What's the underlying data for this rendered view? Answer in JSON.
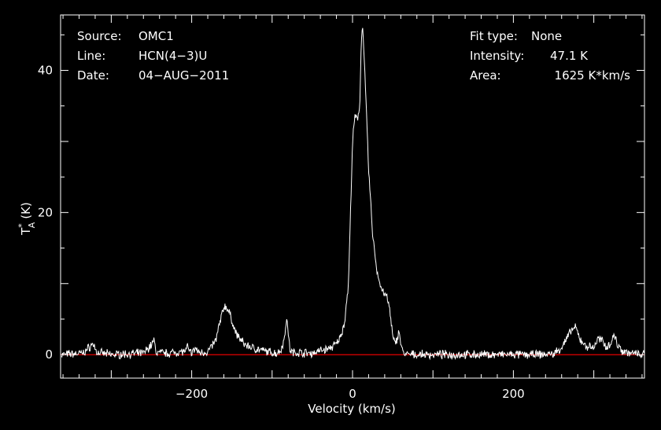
{
  "header_left": {
    "source_label": "Source:",
    "source_value": "OMC1",
    "line_label": "Line:",
    "line_value": "HCN(4−3)U",
    "date_label": "Date:",
    "date_value": "04−AUG−2011"
  },
  "header_right": {
    "fit_label": "Fit type:",
    "fit_value": "None",
    "intensity_label": "Intensity:",
    "intensity_value": "47.1 K",
    "area_label": "Area:",
    "area_value": "1625 K*km/s"
  },
  "colors": {
    "background": "#000000",
    "spectrum": "#ffffff",
    "baseline": "#ff0000"
  },
  "chart_data": {
    "type": "line",
    "xlabel": "Velocity (km/s)",
    "ylabel_main": "T",
    "ylabel_sup": "*",
    "ylabel_sub": "A",
    "ylabel_unit": "(K)",
    "xlim": [
      -363,
      363
    ],
    "ylim": [
      -3.3,
      47.8
    ],
    "xticks": [
      -200,
      0,
      200
    ],
    "xtick_labels": [
      "−200",
      "0",
      "200"
    ],
    "yticks": [
      0,
      20,
      40
    ],
    "ytick_labels": [
      "0",
      "20",
      "40"
    ],
    "grid": false,
    "baseline": 0,
    "series": [
      {
        "x": [
          -363,
          -335,
          -325,
          -322,
          -318,
          -300,
          -260,
          -250,
          -247,
          -244,
          -230,
          -207,
          -205,
          -203,
          -197,
          -195,
          -192,
          -180,
          -170,
          -165,
          -160,
          -157,
          -152,
          -145,
          -135,
          -125,
          -110,
          -95,
          -90,
          -85,
          -82,
          -80,
          -78,
          -75,
          -65,
          -50,
          -40,
          -30,
          -20,
          -15,
          -10,
          -5,
          0,
          3,
          6,
          9,
          11,
          13,
          15,
          17,
          20,
          25,
          30,
          35,
          40,
          43,
          46,
          50,
          53,
          56,
          58,
          60,
          63,
          68,
          80,
          100,
          150,
          200,
          230,
          250,
          260,
          265,
          270,
          275,
          278,
          282,
          290,
          300,
          305,
          310,
          315,
          320,
          325,
          330,
          335,
          345,
          363
        ],
        "y": [
          0,
          0.2,
          1.3,
          1.5,
          0.3,
          0,
          0.2,
          1.4,
          2,
          0.3,
          0.2,
          0.5,
          1.2,
          0.3,
          0.5,
          1,
          0.3,
          0.4,
          2,
          4.5,
          6.7,
          6.8,
          5.5,
          3,
          1.5,
          1,
          0.5,
          0.2,
          0.5,
          2,
          5.4,
          3,
          0.8,
          0.3,
          0.3,
          0.2,
          0.6,
          0.8,
          1.5,
          2.5,
          4.5,
          10,
          30,
          33.5,
          33,
          35,
          45,
          46,
          40,
          35,
          26,
          17,
          12,
          9.5,
          8.5,
          8,
          6.5,
          2.5,
          1.5,
          2.5,
          3.5,
          1.5,
          0.2,
          0,
          0,
          0,
          0,
          0,
          0,
          0.1,
          1,
          2,
          3,
          3.8,
          3.7,
          2.3,
          1.2,
          1,
          2.2,
          2,
          1.2,
          1.4,
          2.8,
          1.3,
          0.6,
          0.2,
          0
        ]
      }
    ]
  }
}
